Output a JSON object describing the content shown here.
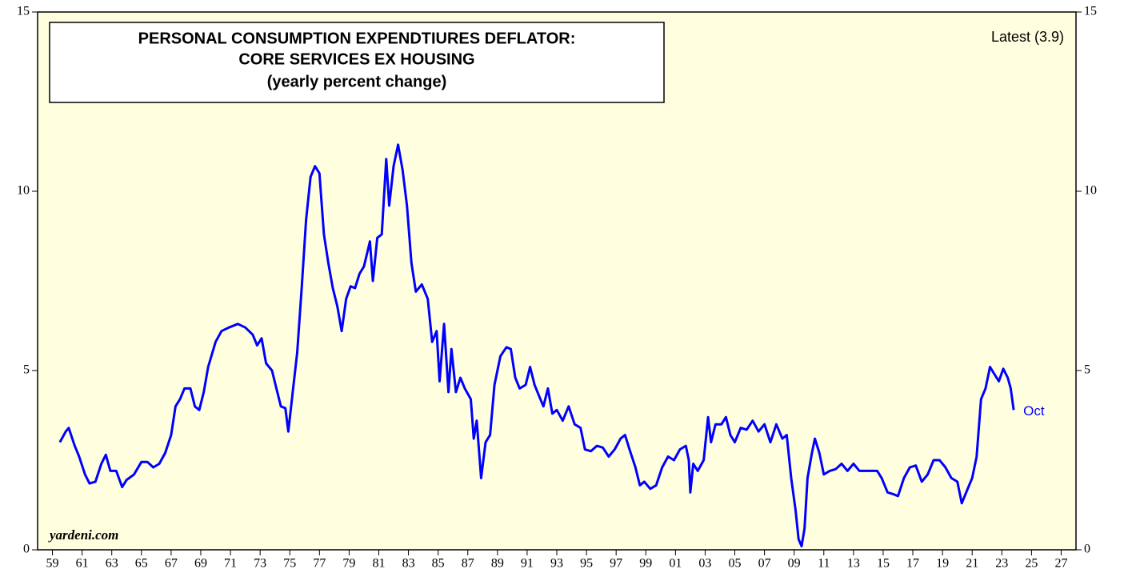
{
  "chart_data": {
    "type": "line",
    "title_lines": [
      "PERSONAL CONSUMPTION EXPENDTIURES DEFLATOR:",
      "CORE SERVICES EX HOUSING",
      "(yearly percent change)"
    ],
    "latest_label": "Latest  (3.9)",
    "end_label": "Oct",
    "credit": "yardeni.com",
    "color": "#0000ff",
    "x": [
      1959.5,
      1959.9,
      1960.1,
      1960.5,
      1960.8,
      1961.2,
      1961.5,
      1961.9,
      1962.3,
      1962.6,
      1962.9,
      1963.3,
      1963.7,
      1964.0,
      1964.5,
      1965.0,
      1965.4,
      1965.8,
      1966.2,
      1966.6,
      1967.0,
      1967.3,
      1967.6,
      1967.9,
      1968.3,
      1968.6,
      1968.9,
      1969.2,
      1969.5,
      1970.0,
      1970.4,
      1970.9,
      1971.5,
      1972.0,
      1972.5,
      1972.8,
      1973.1,
      1973.4,
      1973.8,
      1974.1,
      1974.4,
      1974.7,
      1974.9,
      1975.2,
      1975.5,
      1975.8,
      1976.1,
      1976.4,
      1976.7,
      1977.0,
      1977.3,
      1977.6,
      1977.9,
      1978.2,
      1978.5,
      1978.8,
      1979.1,
      1979.4,
      1979.7,
      1980.0,
      1980.4,
      1980.6,
      1980.9,
      1981.2,
      1981.5,
      1981.7,
      1982.0,
      1982.3,
      1982.6,
      1982.9,
      1983.2,
      1983.5,
      1983.9,
      1984.3,
      1984.6,
      1984.9,
      1985.1,
      1985.4,
      1985.7,
      1985.9,
      1986.2,
      1986.5,
      1986.8,
      1987.2,
      1987.4,
      1987.6,
      1987.9,
      1988.2,
      1988.5,
      1988.8,
      1989.2,
      1989.6,
      1989.9,
      1990.2,
      1990.5,
      1990.9,
      1991.2,
      1991.5,
      1991.8,
      1992.1,
      1992.4,
      1992.7,
      1993.0,
      1993.4,
      1993.8,
      1994.2,
      1994.6,
      1994.9,
      1995.3,
      1995.7,
      1996.1,
      1996.5,
      1996.9,
      1997.3,
      1997.6,
      1997.9,
      1998.3,
      1998.6,
      1998.9,
      1999.3,
      1999.7,
      2000.1,
      2000.5,
      2000.9,
      2001.3,
      2001.7,
      2001.9,
      2002.0,
      2002.2,
      2002.5,
      2002.9,
      2003.2,
      2003.4,
      2003.7,
      2004.1,
      2004.4,
      2004.7,
      2005.0,
      2005.4,
      2005.8,
      2006.2,
      2006.6,
      2007.0,
      2007.4,
      2007.8,
      2008.2,
      2008.5,
      2008.8,
      2009.1,
      2009.3,
      2009.5,
      2009.7,
      2009.9,
      2010.2,
      2010.4,
      2010.7,
      2011.0,
      2011.4,
      2011.8,
      2012.2,
      2012.6,
      2013.0,
      2013.4,
      2013.8,
      2014.2,
      2014.6,
      2014.9,
      2015.3,
      2015.7,
      2016.0,
      2016.4,
      2016.8,
      2017.2,
      2017.6,
      2018.0,
      2018.4,
      2018.8,
      2019.2,
      2019.6,
      2020.0,
      2020.3,
      2020.7,
      2021.0,
      2021.3,
      2021.6,
      2021.9,
      2022.2,
      2022.5,
      2022.8,
      2023.1,
      2023.4,
      2023.6,
      2023.8
    ],
    "values": [
      3.0,
      3.3,
      3.4,
      2.9,
      2.6,
      2.1,
      1.85,
      1.9,
      2.4,
      2.65,
      2.2,
      2.2,
      1.75,
      1.95,
      2.1,
      2.45,
      2.45,
      2.3,
      2.4,
      2.7,
      3.2,
      4.0,
      4.2,
      4.5,
      4.5,
      4.0,
      3.9,
      4.4,
      5.1,
      5.8,
      6.1,
      6.2,
      6.3,
      6.2,
      6.0,
      5.7,
      5.9,
      5.2,
      5.0,
      4.5,
      4.0,
      3.95,
      3.3,
      4.4,
      5.5,
      7.3,
      9.2,
      10.4,
      10.7,
      10.5,
      8.8,
      8.0,
      7.3,
      6.8,
      6.1,
      7.0,
      7.35,
      7.3,
      7.7,
      7.9,
      8.6,
      7.5,
      8.7,
      8.8,
      10.9,
      9.6,
      10.7,
      11.3,
      10.6,
      9.6,
      8.0,
      7.2,
      7.4,
      7.0,
      5.8,
      6.1,
      4.7,
      6.3,
      4.4,
      5.6,
      4.4,
      4.8,
      4.5,
      4.2,
      3.1,
      3.6,
      2.0,
      3.0,
      3.2,
      4.6,
      5.4,
      5.65,
      5.6,
      4.8,
      4.5,
      4.6,
      5.1,
      4.6,
      4.3,
      4.0,
      4.5,
      3.8,
      3.9,
      3.6,
      4.0,
      3.5,
      3.4,
      2.8,
      2.75,
      2.9,
      2.85,
      2.6,
      2.8,
      3.1,
      3.2,
      2.8,
      2.3,
      1.8,
      1.9,
      1.7,
      1.8,
      2.3,
      2.6,
      2.5,
      2.8,
      2.9,
      2.5,
      1.6,
      2.4,
      2.2,
      2.5,
      3.7,
      3.0,
      3.5,
      3.5,
      3.7,
      3.2,
      3.0,
      3.4,
      3.35,
      3.6,
      3.3,
      3.5,
      3.0,
      3.5,
      3.1,
      3.2,
      2.0,
      1.1,
      0.3,
      0.1,
      0.6,
      2.0,
      2.7,
      3.1,
      2.7,
      2.1,
      2.2,
      2.25,
      2.4,
      2.2,
      2.4,
      2.2,
      2.2,
      2.2,
      2.2,
      2.0,
      1.6,
      1.55,
      1.5,
      2.0,
      2.3,
      2.35,
      1.9,
      2.1,
      2.5,
      2.5,
      2.3,
      2.0,
      1.9,
      1.3,
      1.7,
      2.0,
      2.6,
      4.2,
      4.5,
      5.1,
      4.9,
      4.7,
      5.05,
      4.8,
      4.5,
      3.9
    ],
    "xlim": [
      1958,
      2028
    ],
    "ylim": [
      0,
      15
    ],
    "yticks": [
      0,
      5,
      10,
      15
    ],
    "xticks": [
      {
        "value": 1959,
        "label": "59"
      },
      {
        "value": 1961,
        "label": "61"
      },
      {
        "value": 1963,
        "label": "63"
      },
      {
        "value": 1965,
        "label": "65"
      },
      {
        "value": 1967,
        "label": "67"
      },
      {
        "value": 1969,
        "label": "69"
      },
      {
        "value": 1971,
        "label": "71"
      },
      {
        "value": 1973,
        "label": "73"
      },
      {
        "value": 1975,
        "label": "75"
      },
      {
        "value": 1977,
        "label": "77"
      },
      {
        "value": 1979,
        "label": "79"
      },
      {
        "value": 1981,
        "label": "81"
      },
      {
        "value": 1983,
        "label": "83"
      },
      {
        "value": 1985,
        "label": "85"
      },
      {
        "value": 1987,
        "label": "87"
      },
      {
        "value": 1989,
        "label": "89"
      },
      {
        "value": 1991,
        "label": "91"
      },
      {
        "value": 1993,
        "label": "93"
      },
      {
        "value": 1995,
        "label": "95"
      },
      {
        "value": 1997,
        "label": "97"
      },
      {
        "value": 1999,
        "label": "99"
      },
      {
        "value": 2001,
        "label": "01"
      },
      {
        "value": 2003,
        "label": "03"
      },
      {
        "value": 2005,
        "label": "05"
      },
      {
        "value": 2007,
        "label": "07"
      },
      {
        "value": 2009,
        "label": "09"
      },
      {
        "value": 2011,
        "label": "11"
      },
      {
        "value": 2013,
        "label": "13"
      },
      {
        "value": 2015,
        "label": "15"
      },
      {
        "value": 2017,
        "label": "17"
      },
      {
        "value": 2019,
        "label": "19"
      },
      {
        "value": 2021,
        "label": "21"
      },
      {
        "value": 2023,
        "label": "23"
      },
      {
        "value": 2025,
        "label": "25"
      },
      {
        "value": 2027,
        "label": "27"
      }
    ]
  }
}
